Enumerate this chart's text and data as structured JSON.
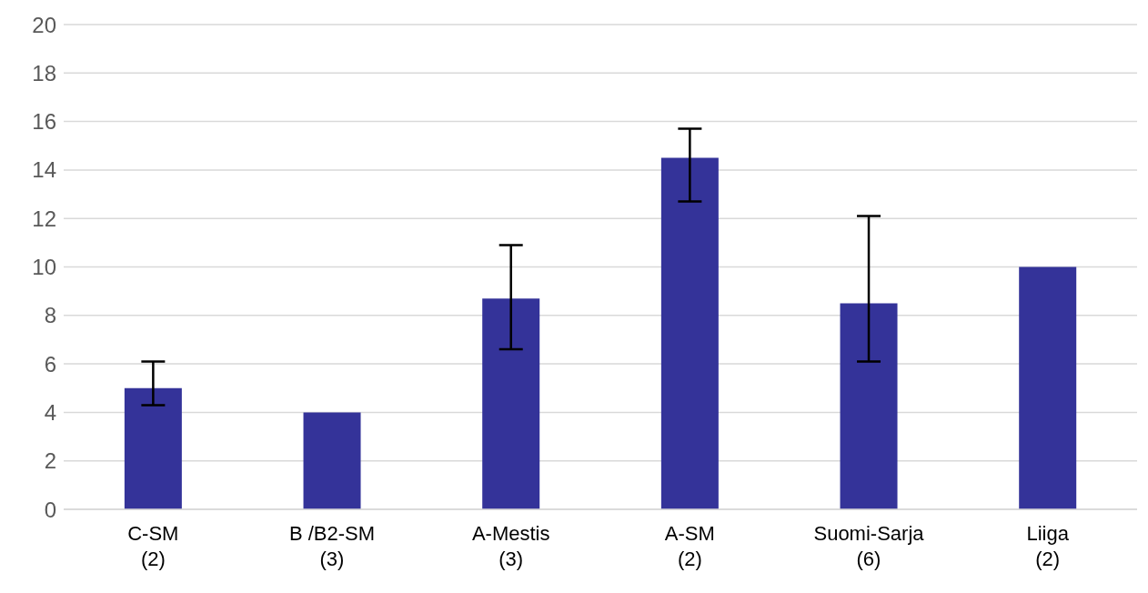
{
  "chart_data": {
    "type": "bar",
    "categories": [
      "C-SM\n(2)",
      "B /B2-SM\n(3)",
      "A-Mestis\n(3)",
      "A-SM\n(2)",
      "Suomi-Sarja\n(6)",
      "Liiga\n(2)"
    ],
    "values": [
      5,
      4,
      8.7,
      14.5,
      8.5,
      10
    ],
    "errors": [
      [
        4.3,
        6.1
      ],
      null,
      [
        6.6,
        10.9
      ],
      [
        12.7,
        15.7
      ],
      [
        6.1,
        12.1
      ],
      null
    ],
    "color": "#343399",
    "ylim": [
      0,
      20
    ],
    "yticks": [
      0,
      2,
      4,
      6,
      8,
      10,
      12,
      14,
      16,
      18,
      20
    ],
    "grid": "y"
  }
}
